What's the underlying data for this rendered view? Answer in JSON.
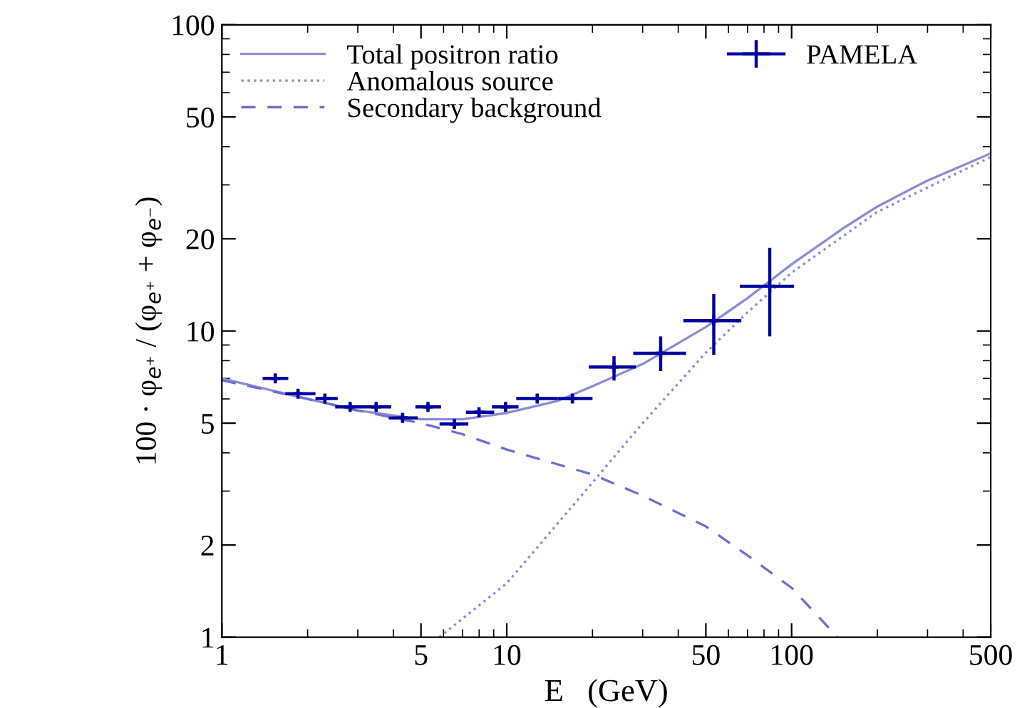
{
  "chart_data": {
    "type": "line",
    "xlabel": "E   (GeV)",
    "ylabel": "100 · φ$_{e⁺}$ / (φ$_{e⁺}$ + φ$_{e⁻}$)",
    "log": "xy",
    "xlim": [
      1,
      500
    ],
    "ylim": [
      1,
      100
    ],
    "xticks": [
      1,
      5,
      10,
      50,
      100,
      500
    ],
    "yticks": [
      1,
      2,
      5,
      10,
      20,
      50,
      100
    ],
    "grid": false,
    "legend": "top",
    "series": [
      {
        "name": "Total positron ratio",
        "line_style": "solid",
        "color": "#8c8cd8",
        "x": [
          1,
          2,
          3,
          5,
          7,
          10,
          15,
          20,
          30,
          50,
          70,
          100,
          150,
          200,
          300,
          500
        ],
        "values": [
          7.0,
          6.0,
          5.5,
          5.15,
          5.15,
          5.4,
          5.9,
          6.6,
          7.8,
          10.3,
          12.8,
          16.5,
          21.5,
          25.5,
          31,
          38
        ]
      },
      {
        "name": "Anomalous source",
        "line_style": "dotted",
        "color": "#8c8cd8",
        "x": [
          5.8,
          10,
          20,
          30,
          50,
          70,
          100,
          200,
          500
        ],
        "values": [
          1,
          1.5,
          3.2,
          5.0,
          8.5,
          11.5,
          15.5,
          24.5,
          37
        ]
      },
      {
        "name": "Secondary background",
        "line_style": "dashed",
        "color": "#7070d0",
        "x": [
          1,
          2,
          3,
          5,
          7,
          10,
          20,
          30,
          50,
          70,
          100,
          145
        ],
        "values": [
          6.9,
          6.0,
          5.5,
          5.0,
          4.6,
          4.1,
          3.4,
          2.9,
          2.3,
          1.85,
          1.45,
          1.0
        ]
      },
      {
        "name": "PAMELA",
        "type": "scatter",
        "marker": "cross",
        "color": "#0000a0",
        "x": [
          1.54,
          1.85,
          2.3,
          2.82,
          3.48,
          4.31,
          5.29,
          6.55,
          7.99,
          9.9,
          12.8,
          17.0,
          23.8,
          34.7,
          53.3,
          83.8
        ],
        "values": [
          7.0,
          6.24,
          6.02,
          5.65,
          5.65,
          5.2,
          5.65,
          4.97,
          5.43,
          5.65,
          6.02,
          6.02,
          7.63,
          8.46,
          10.8,
          14.0
        ],
        "errors": [
          0.15,
          0.15,
          0.15,
          0.15,
          0.15,
          0.15,
          0.15,
          0.15,
          0.15,
          0.15,
          0.2,
          0.2,
          [
            6.89,
            8.27
          ],
          [
            7.4,
            9.6
          ],
          [
            8.36,
            13.2
          ],
          [
            9.6,
            18.7
          ]
        ],
        "xerrors": [
          [
            1.39,
            1.71
          ],
          [
            1.67,
            2.13
          ],
          [
            2.13,
            2.55
          ],
          [
            2.5,
            3.14
          ],
          [
            3.14,
            3.93
          ],
          [
            3.85,
            4.87
          ],
          [
            4.78,
            5.88
          ],
          [
            5.81,
            7.33
          ],
          [
            7.19,
            9.04
          ],
          [
            8.87,
            11.0
          ],
          [
            10.8,
            15.1
          ],
          [
            15.1,
            20.0
          ],
          [
            19.4,
            28.4
          ],
          [
            27.8,
            42.6
          ],
          [
            41.7,
            66.6
          ],
          [
            65.8,
            102
          ]
        ]
      }
    ]
  }
}
